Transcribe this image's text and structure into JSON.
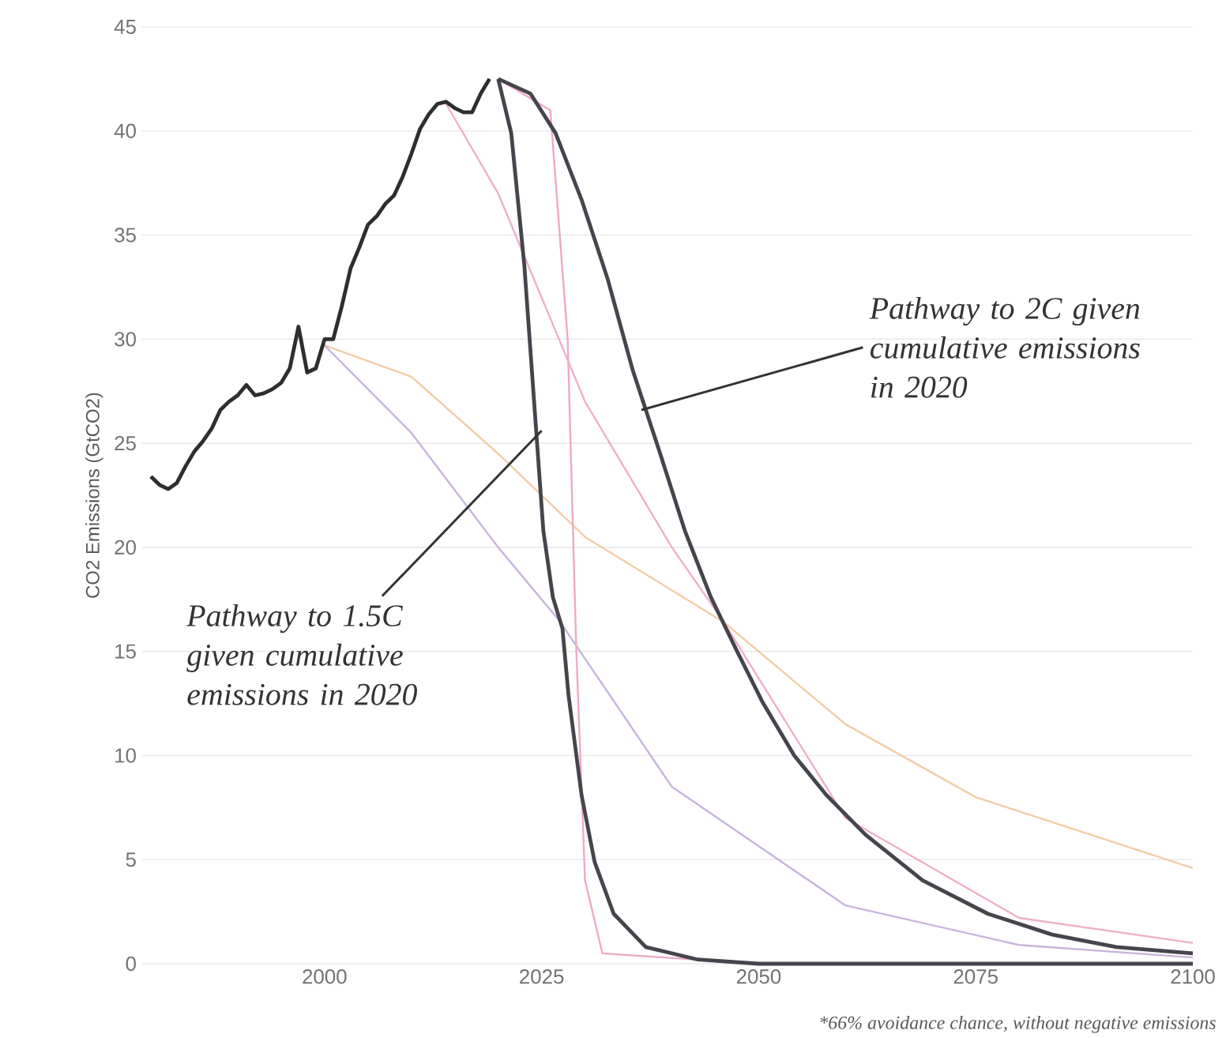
{
  "chart_data": {
    "type": "line",
    "ylabel": "CO2 Emissions (GtCO2)",
    "xlim": [
      1979,
      2100
    ],
    "xticks": [
      2000,
      2025,
      2050,
      2075,
      2100
    ],
    "ylim": [
      0,
      45
    ],
    "yticks": [
      0,
      5,
      10,
      15,
      20,
      25,
      30,
      35,
      40,
      45
    ],
    "grid": "y",
    "marker": "none",
    "line_style": "solid",
    "series": [
      {
        "color": "#f2cda6",
        "x": [
          2000,
          2010,
          2020,
          2030,
          2046,
          2060,
          2075,
          2100
        ],
        "values": [
          29.7,
          28.2,
          24.5,
          20.5,
          16.4,
          11.5,
          8,
          4.6
        ]
      },
      {
        "color": "#c8b4dc",
        "x": [
          2000,
          2010,
          2020,
          2027,
          2040,
          2060,
          2080,
          2100
        ],
        "values": [
          29.7,
          25.5,
          20,
          16.5,
          8.5,
          2.8,
          0.9,
          0.3
        ]
      },
      {
        "color": "#f0a9c4",
        "x": [
          2020,
          2026,
          2028,
          2029,
          2030,
          2032,
          2050,
          2100
        ],
        "values": [
          42.5,
          41,
          30,
          15,
          4,
          0.5,
          0,
          0
        ]
      },
      {
        "color": "#eeb0c8",
        "x": [
          2014,
          2020,
          2030,
          2040,
          2046,
          2060,
          2080,
          2100
        ],
        "values": [
          41.3,
          37,
          27,
          20,
          16.4,
          7,
          2.2,
          1
        ]
      },
      {
        "color": "#2e2e2e",
        "x": [
          1980,
          1981,
          1982,
          1983,
          1984,
          1985,
          1986,
          1987,
          1988,
          1989,
          1990,
          1991,
          1992,
          1993,
          1994,
          1995,
          1996,
          1997,
          1998,
          1999,
          2000,
          2001,
          2002,
          2003,
          2004,
          2005,
          2006,
          2007,
          2008,
          2009,
          2010,
          2011,
          2012,
          2013,
          2014,
          2015,
          2016,
          2017,
          2018,
          2019
        ],
        "values": [
          23.4,
          23.0,
          22.8,
          23.1,
          23.9,
          24.6,
          25.1,
          25.7,
          26.6,
          27.0,
          27.3,
          27.8,
          27.3,
          27.4,
          27.6,
          27.9,
          28.6,
          30.6,
          28.4,
          28.6,
          30.0,
          30.0,
          31.6,
          33.4,
          34.4,
          35.5,
          35.9,
          36.5,
          36.9,
          37.8,
          38.9,
          40.1,
          40.8,
          41.3,
          41.4,
          41.1,
          40.9,
          40.9,
          41.8,
          42.5
        ]
      },
      {
        "color": "#46444c",
        "x": [
          2020,
          2021.5,
          2023,
          2024.1,
          2025.2,
          2026.3,
          2027.4,
          2028.1,
          2029.6,
          2031.1,
          2033.3,
          2037,
          2043,
          2050,
          2100
        ],
        "values": [
          42.5,
          39.9,
          33.6,
          27.2,
          20.8,
          17.6,
          16.1,
          12.9,
          8.1,
          4.9,
          2.4,
          0.8,
          0.2,
          0,
          0
        ]
      },
      {
        "color": "#46444c",
        "x": [
          2020,
          2023.7,
          2026.6,
          2029.6,
          2032.6,
          2035.5,
          2038.5,
          2041.5,
          2044.5,
          2047.4,
          2050.4,
          2054.1,
          2057.8,
          2062.3,
          2068.9,
          2076.4,
          2083.8,
          2091.2,
          2100
        ],
        "values": [
          42.5,
          41.8,
          39.9,
          36.7,
          32.9,
          28.5,
          24.7,
          20.8,
          17.6,
          15.1,
          12.6,
          10,
          8.1,
          6.2,
          4,
          2.4,
          1.4,
          0.8,
          0.5
        ]
      }
    ],
    "annotations": [
      {
        "text": "Pathway to 2C given cumulative emissions in 2020",
        "x": 2036.5,
        "y": 26.6
      },
      {
        "text": "Pathway to 1.5C given cumulative emissions in 2020",
        "x": 2025,
        "y": 25.6
      },
      "*66% avoidance chance, without negative emissions"
    ]
  }
}
